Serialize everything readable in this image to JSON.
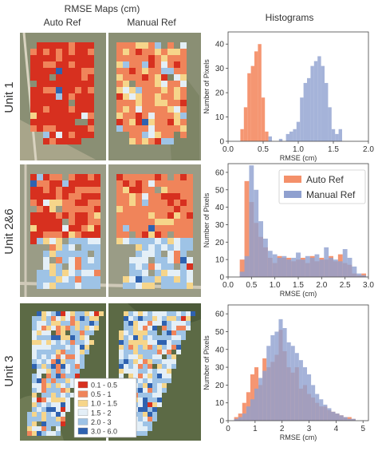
{
  "figure": {
    "maps_header": "RMSE Maps (cm)",
    "histograms_header": "Histograms",
    "column_labels": [
      "Auto Ref",
      "Manual Ref"
    ],
    "unit_labels": [
      "Unit 1",
      "Unit 2&6",
      "Unit 3"
    ]
  },
  "rmse_bins": [
    {
      "label": "0.1 - 0.5",
      "color": "#d7301f"
    },
    {
      "label": "0.5 - 1",
      "color": "#f0845a"
    },
    {
      "label": "1.0 - 1.5",
      "color": "#f6d58a"
    },
    {
      "label": "1.5 - 2",
      "color": "#e4eff7"
    },
    {
      "label": "2.0 - 3",
      "color": "#9ec3e6"
    },
    {
      "label": "3.0 - 6.0",
      "color": "#2f62b0"
    }
  ],
  "chart_data": [
    {
      "type": "bar",
      "title": "Unit 1",
      "xlabel": "RMSE (cm)",
      "ylabel": "Number of Pixels",
      "xlim": [
        0,
        2.0
      ],
      "ylim": [
        0,
        45
      ],
      "xticks": [
        "0.0",
        "0.5",
        "1.0",
        "1.5",
        "2.0"
      ],
      "yticks": [
        "0",
        "10",
        "20",
        "30",
        "40"
      ],
      "bin_width": 0.05,
      "series": [
        {
          "name": "Auto Ref",
          "color": "#f4906a",
          "x": [
            0.2,
            0.25,
            0.3,
            0.35,
            0.4,
            0.45,
            0.5,
            0.55
          ],
          "y": [
            5,
            14,
            28,
            31,
            37,
            40,
            18,
            4
          ]
        },
        {
          "name": "Manual Ref",
          "color": "#8fa0cf",
          "x": [
            0.6,
            0.75,
            0.85,
            0.9,
            0.95,
            1.0,
            1.05,
            1.1,
            1.15,
            1.2,
            1.25,
            1.3,
            1.35,
            1.4,
            1.45,
            1.5,
            1.55,
            1.6
          ],
          "y": [
            2,
            1,
            3,
            4,
            5,
            8,
            18,
            24,
            26,
            31,
            33,
            35,
            31,
            24,
            14,
            5,
            3,
            5
          ]
        }
      ],
      "legend": false
    },
    {
      "type": "bar",
      "title": "Unit 2&6",
      "xlabel": "RMSE (cm)",
      "ylabel": "Number of Pixels",
      "xlim": [
        0,
        3.0
      ],
      "ylim": [
        0,
        65
      ],
      "xticks": [
        "0.0",
        "0.5",
        "1.0",
        "1.5",
        "2.0",
        "2.5",
        "3.0"
      ],
      "yticks": [
        "0",
        "10",
        "20",
        "30",
        "40",
        "50",
        "60"
      ],
      "bin_width": 0.1,
      "series": [
        {
          "name": "Auto Ref",
          "color": "#f4906a",
          "x": [
            0.3,
            0.4,
            0.5,
            0.6,
            0.7,
            0.8,
            0.9,
            1.0,
            1.1,
            1.2,
            1.3,
            1.4,
            1.5,
            1.6,
            1.7,
            1.8,
            1.9,
            2.0,
            2.1,
            2.2,
            2.3,
            2.4,
            2.5,
            2.6,
            2.7,
            2.8,
            2.9
          ],
          "y": [
            10,
            55,
            43,
            31,
            23,
            17,
            11,
            8,
            12,
            11,
            11,
            9,
            10,
            11,
            8,
            12,
            9,
            11,
            10,
            12,
            9,
            13,
            8,
            7,
            2,
            1,
            2
          ]
        },
        {
          "name": "Manual Ref",
          "color": "#8fa0cf",
          "x": [
            0.3,
            0.4,
            0.5,
            0.6,
            0.7,
            0.8,
            0.9,
            1.0,
            1.1,
            1.2,
            1.3,
            1.4,
            1.5,
            1.6,
            1.7,
            1.8,
            1.9,
            2.0,
            2.1,
            2.2,
            2.3,
            2.4,
            2.5,
            2.6,
            2.7,
            2.8,
            2.9
          ],
          "y": [
            3,
            12,
            64,
            50,
            32,
            22,
            15,
            13,
            11,
            12,
            10,
            11,
            14,
            10,
            12,
            11,
            13,
            10,
            17,
            11,
            10,
            9,
            16,
            11,
            6,
            2,
            1
          ]
        }
      ],
      "legend": true,
      "legend_placement": "top-right"
    },
    {
      "type": "bar",
      "title": "Unit 3",
      "xlabel": "RMSE (cm)",
      "ylabel": "Number of Pixels",
      "xlim": [
        0,
        5.2
      ],
      "ylim": [
        0,
        65
      ],
      "xticks": [
        "0",
        "1",
        "2",
        "3",
        "4",
        "5"
      ],
      "yticks": [
        "0",
        "10",
        "20",
        "30",
        "40",
        "50",
        "60"
      ],
      "bin_width": 0.15,
      "series": [
        {
          "name": "Auto Ref",
          "color": "#f4906a",
          "x": [
            0.3,
            0.45,
            0.6,
            0.75,
            0.9,
            1.05,
            1.2,
            1.35,
            1.5,
            1.65,
            1.8,
            1.95,
            2.1,
            2.25,
            2.4,
            2.55,
            2.7,
            2.85,
            3.0,
            3.15,
            3.3,
            3.45,
            3.6,
            3.75,
            3.9,
            4.05,
            4.2,
            4.35,
            4.5,
            4.65
          ],
          "y": [
            2,
            4,
            10,
            16,
            26,
            30,
            20,
            35,
            30,
            33,
            37,
            51,
            39,
            30,
            27,
            30,
            18,
            20,
            15,
            13,
            10,
            8,
            8,
            6,
            5,
            4,
            3,
            2,
            2,
            1
          ]
        },
        {
          "name": "Manual Ref",
          "color": "#8fa0cf",
          "x": [
            0.3,
            0.45,
            0.6,
            0.75,
            0.9,
            1.05,
            1.2,
            1.35,
            1.5,
            1.65,
            1.8,
            1.95,
            2.1,
            2.25,
            2.4,
            2.55,
            2.7,
            2.85,
            3.0,
            3.15,
            3.3,
            3.45,
            3.6,
            3.75,
            3.9,
            4.05,
            4.2,
            4.35,
            4.5,
            4.65
          ],
          "y": [
            1,
            2,
            4,
            8,
            12,
            18,
            24,
            28,
            42,
            48,
            50,
            57,
            52,
            44,
            42,
            38,
            34,
            30,
            26,
            20,
            15,
            12,
            9,
            7,
            5,
            4,
            3,
            2,
            1,
            1
          ]
        }
      ],
      "legend": false
    }
  ]
}
